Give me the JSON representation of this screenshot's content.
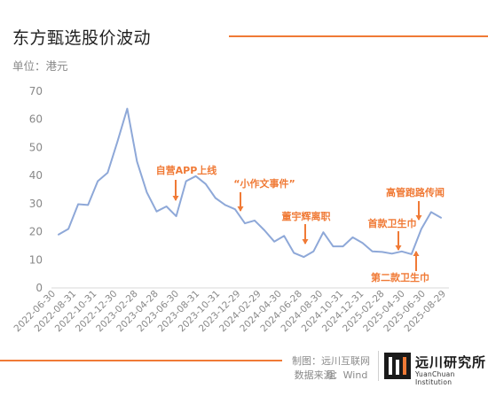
{
  "header": {
    "title": "东方甄选股价波动",
    "unit": "单位：港元"
  },
  "footer": {
    "made_by": "制图：远川互联网组",
    "source": "数据来源：Wind",
    "brand_cn": "远川研究所",
    "brand_en": "YuanChuan Institution"
  },
  "colors": {
    "line": "#8ea8d8",
    "accent": "#f07a36",
    "axis_text": "#888888"
  },
  "chart_data": {
    "type": "line",
    "title": "东方甄选股价波动",
    "ylabel": "单位：港元",
    "ylim": [
      0,
      70
    ],
    "yticks": [
      0,
      10,
      20,
      30,
      40,
      50,
      60,
      70
    ],
    "grid": false,
    "x_tick_labels": [
      "2022-06-30",
      "2022-08-31",
      "2022-10-31",
      "2022-12-30",
      "2023-02-28",
      "2023-04-28",
      "2023-06-30",
      "2023-08-31",
      "2023-10-31",
      "2023-12-29",
      "2024-02-29",
      "2024-04-30",
      "2024-06-28",
      "2024-08-30",
      "2024-10-31",
      "2024-12-31",
      "2025-02-28",
      "2025-04-30",
      "2025-06-30",
      "2025-08-29"
    ],
    "series": [
      {
        "values": [
          19,
          21,
          29.8,
          29.5,
          38,
          41,
          52,
          63.8,
          45,
          34,
          27.2,
          29,
          25.5,
          38,
          39.8,
          37,
          32,
          29.5,
          28,
          23,
          24,
          20.5,
          16.5,
          18.5,
          12.5,
          11,
          13,
          19.8,
          14.8,
          14.8,
          18,
          16,
          13,
          12.8,
          12.2,
          13,
          12,
          21,
          27,
          25
        ]
      }
    ],
    "annotations": [
      {
        "text": "自营APP上线",
        "index": 12
      },
      {
        "text": "“小作文事件”",
        "index": 17
      },
      {
        "text": "董宇辉离职",
        "index": 25
      },
      {
        "text": "首款卫生巾",
        "index": 34
      },
      {
        "text": "高管跑路传闻",
        "index": 37
      },
      {
        "text": "第二款卫生巾",
        "index": 36
      }
    ]
  }
}
